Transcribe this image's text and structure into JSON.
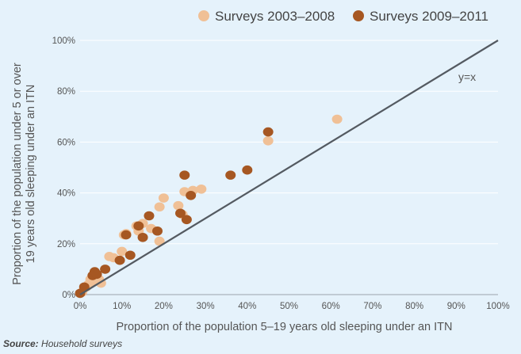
{
  "chart_data": {
    "type": "scatter",
    "xlabel": "Proportion of the population 5–19 years old sleeping under an ITN",
    "ylabel_lines": [
      "Proportion of the population under 5 or over",
      "19 years old sleeping under an ITN"
    ],
    "xlim": [
      0,
      100
    ],
    "ylim": [
      0,
      100
    ],
    "x_ticks": [
      0,
      10,
      20,
      30,
      40,
      50,
      60,
      70,
      80,
      90,
      100
    ],
    "x_tick_labels": [
      "0%",
      "10%",
      "20%",
      "30%",
      "40%",
      "50%",
      "60%",
      "70%",
      "80%",
      "90%",
      "100%"
    ],
    "y_ticks": [
      0,
      20,
      40,
      60,
      80,
      100
    ],
    "y_tick_labels": [
      "0%",
      "20%",
      "40%",
      "60%",
      "80%",
      "100%"
    ],
    "grid": "horizontal",
    "legend_position": "top-right",
    "reference_line": {
      "label": "y=x",
      "from": [
        0,
        0
      ],
      "to": [
        100,
        100
      ],
      "color": "#545a61"
    },
    "series": [
      {
        "name": "Surveys 2003–2008",
        "color": "#f0c096",
        "points": [
          [
            0.5,
            1
          ],
          [
            1.5,
            3
          ],
          [
            2,
            4
          ],
          [
            2.5,
            6
          ],
          [
            3,
            5
          ],
          [
            3.5,
            7
          ],
          [
            4.5,
            6
          ],
          [
            5,
            4.5
          ],
          [
            7,
            15
          ],
          [
            8,
            14.5
          ],
          [
            10,
            17
          ],
          [
            10.5,
            23.5
          ],
          [
            11,
            24
          ],
          [
            13.5,
            27
          ],
          [
            14,
            25
          ],
          [
            15,
            28
          ],
          [
            17,
            26
          ],
          [
            19,
            21
          ],
          [
            19,
            34.5
          ],
          [
            20,
            38
          ],
          [
            23.5,
            35
          ],
          [
            24.5,
            31.5
          ],
          [
            25,
            40.5
          ],
          [
            27,
            41
          ],
          [
            29,
            41.5
          ],
          [
            45,
            60.5
          ],
          [
            61.5,
            69
          ]
        ]
      },
      {
        "name": "Surveys 2009–2011",
        "color": "#a65722",
        "points": [
          [
            0,
            0.5
          ],
          [
            1,
            3
          ],
          [
            3,
            7.5
          ],
          [
            3.5,
            9
          ],
          [
            4,
            8
          ],
          [
            6,
            10
          ],
          [
            9.5,
            13.5
          ],
          [
            11,
            23.5
          ],
          [
            12,
            15.5
          ],
          [
            14,
            27
          ],
          [
            15,
            22.5
          ],
          [
            16.5,
            31
          ],
          [
            18.5,
            25
          ],
          [
            24,
            32
          ],
          [
            25,
            47
          ],
          [
            25.5,
            29.5
          ],
          [
            26.5,
            39
          ],
          [
            36,
            47
          ],
          [
            40,
            49
          ],
          [
            45,
            64
          ]
        ]
      }
    ]
  },
  "source": {
    "label": "Source:",
    "text": "Household surveys"
  },
  "colors": {
    "background": "#e5f2fb",
    "grid": "#ffffff",
    "axis": "#9aa4ad"
  }
}
